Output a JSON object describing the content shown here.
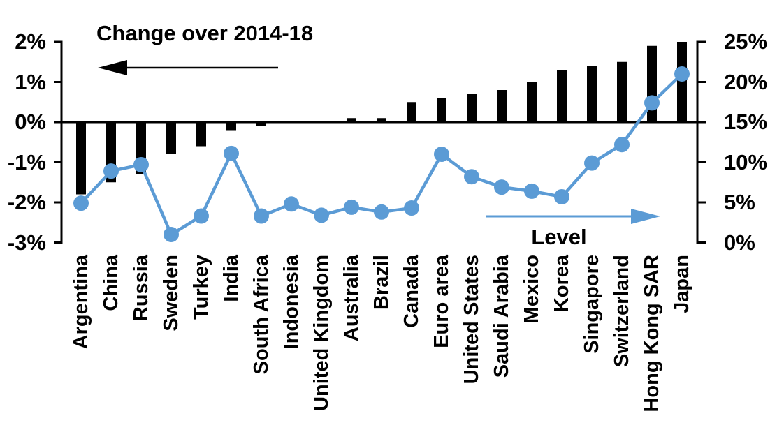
{
  "chart_data": {
    "type": "bar",
    "secondary_type": "line",
    "dual_axis": true,
    "grid": false,
    "categories": [
      "Argentina",
      "China",
      "Russia",
      "Sweden",
      "Turkey",
      "India",
      "South Africa",
      "Indonesia",
      "United Kingdom",
      "Australia",
      "Brazil",
      "Canada",
      "Euro area",
      "United States",
      "Saudi Arabia",
      "Mexico",
      "Korea",
      "Singapore",
      "Switzerland",
      "Hong Kong SAR",
      "Japan"
    ],
    "series": [
      {
        "name": "Change over 2014-18",
        "type": "bar",
        "axis": "left",
        "color": "#000000",
        "values": [
          -1.8,
          -1.5,
          -1.3,
          -0.8,
          -0.6,
          -0.2,
          -0.1,
          0.0,
          0.0,
          0.1,
          0.1,
          0.5,
          0.6,
          0.7,
          0.8,
          1.0,
          1.3,
          1.4,
          1.5,
          1.9,
          2.0
        ]
      },
      {
        "name": "Level",
        "type": "line",
        "axis": "right",
        "color": "#5B9BD5",
        "values": [
          4.9,
          8.9,
          9.7,
          1.0,
          3.3,
          11.1,
          3.3,
          4.8,
          3.4,
          4.4,
          3.8,
          4.3,
          11.0,
          8.2,
          6.9,
          6.4,
          5.7,
          9.9,
          12.2,
          17.4,
          21.0
        ]
      }
    ],
    "left_axis": {
      "min": -3,
      "max": 2,
      "tick_values": [
        2,
        1,
        0,
        -1,
        -2,
        -3
      ],
      "tick_labels": [
        "2%",
        "1%",
        "0%",
        "-1%",
        "-2%",
        "-3%"
      ]
    },
    "right_axis": {
      "min": 0,
      "max": 25,
      "tick_values": [
        25,
        20,
        15,
        10,
        5,
        0
      ],
      "tick_labels": [
        "25%",
        "20%",
        "15%",
        "10%",
        "5%",
        "0%"
      ]
    },
    "annotations": {
      "left_arrow_direction": "left",
      "right_arrow_direction": "right"
    }
  }
}
